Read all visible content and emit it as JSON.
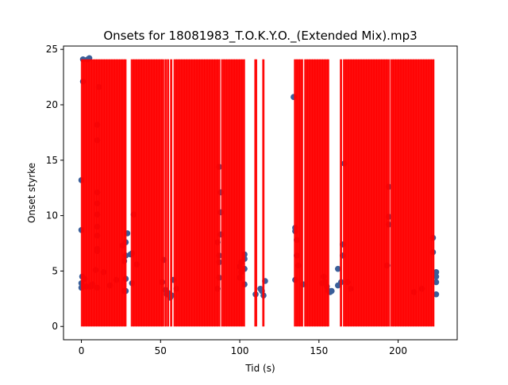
{
  "chart_data": {
    "type": "scatter",
    "title": "Onsets for 18081983_T.O.K.Y.O._(Extended Mix).mp3",
    "xlabel": "Tid (s)",
    "ylabel": "Onset styrke",
    "xlim": [
      -11.3,
      237.3
    ],
    "ylim": [
      -1.2,
      25.3
    ],
    "x_ticks": [
      0,
      50,
      100,
      150,
      200
    ],
    "y_ticks": [
      0,
      5,
      10,
      15,
      20,
      25
    ],
    "grid": false,
    "legend": "none",
    "colors": {
      "points": "#3a5f9a",
      "lines": "#ff0000"
    },
    "onset_line_top": 24.1,
    "points": [
      [
        0,
        3.5
      ],
      [
        0,
        3.9
      ],
      [
        0,
        8.7
      ],
      [
        0,
        13.2
      ],
      [
        0.5,
        4.5
      ],
      [
        1,
        22.1
      ],
      [
        1,
        24.1
      ],
      [
        2,
        4.3
      ],
      [
        3,
        3.6
      ],
      [
        4,
        24.1
      ],
      [
        5,
        24.2
      ],
      [
        6,
        3.6
      ],
      [
        7,
        3.8
      ],
      [
        10,
        18.2
      ],
      [
        10,
        16.8
      ],
      [
        10,
        12.1
      ],
      [
        10,
        11.1
      ],
      [
        10,
        10.1
      ],
      [
        10,
        9.0
      ],
      [
        10,
        8.2
      ],
      [
        10,
        7.0
      ],
      [
        10,
        6.8
      ],
      [
        10,
        3.5
      ],
      [
        11,
        21.6
      ],
      [
        9,
        5.1
      ],
      [
        14,
        4.9
      ],
      [
        18,
        3.7
      ],
      [
        22,
        4.2
      ],
      [
        26,
        7.3
      ],
      [
        27,
        5.9
      ],
      [
        27,
        3.2
      ],
      [
        28,
        3.2
      ],
      [
        28,
        4.3
      ],
      [
        28,
        6.4
      ],
      [
        28,
        7.6
      ],
      [
        29,
        8.4
      ],
      [
        31,
        6.5
      ],
      [
        32,
        3.9
      ],
      [
        33,
        10.1
      ],
      [
        32,
        6.6
      ],
      [
        35,
        5.6
      ],
      [
        51,
        4.0
      ],
      [
        52,
        6.0
      ],
      [
        53,
        3.3
      ],
      [
        54,
        2.9
      ],
      [
        55,
        3.0
      ],
      [
        56,
        2.6
      ],
      [
        57,
        2.8
      ],
      [
        58,
        4.2
      ],
      [
        60,
        3.4
      ],
      [
        86,
        3.4
      ],
      [
        86,
        7.6
      ],
      [
        87,
        4.4
      ],
      [
        87,
        5.8
      ],
      [
        87,
        6.4
      ],
      [
        88,
        8.3
      ],
      [
        88,
        10.3
      ],
      [
        88,
        12.1
      ],
      [
        87,
        14.4
      ],
      [
        100,
        4.4
      ],
      [
        100,
        5.4
      ],
      [
        101,
        5.8
      ],
      [
        101,
        4.9
      ],
      [
        103,
        6.5
      ],
      [
        103,
        6.1
      ],
      [
        103,
        5.2
      ],
      [
        103,
        3.8
      ],
      [
        110,
        2.9
      ],
      [
        113,
        3.4
      ],
      [
        114,
        3.2
      ],
      [
        115,
        2.8
      ],
      [
        116,
        4.1
      ],
      [
        134,
        20.7
      ],
      [
        135,
        4.2
      ],
      [
        135,
        8.6
      ],
      [
        135,
        8.9
      ],
      [
        136,
        7.8
      ],
      [
        136,
        6.4
      ],
      [
        137,
        5.5
      ],
      [
        140,
        3.8
      ],
      [
        152,
        3.9
      ],
      [
        153,
        4.5
      ],
      [
        154,
        4.0
      ],
      [
        155,
        3.6
      ],
      [
        156,
        3.2
      ],
      [
        157,
        3.1
      ],
      [
        158,
        3.2
      ],
      [
        162,
        3.7
      ],
      [
        162,
        5.2
      ],
      [
        164,
        4.0
      ],
      [
        165,
        6.4
      ],
      [
        165,
        7.4
      ],
      [
        166,
        14.7
      ],
      [
        168,
        4.0
      ],
      [
        170,
        3.4
      ],
      [
        193,
        5.5
      ],
      [
        194,
        9.2
      ],
      [
        194,
        9.9
      ],
      [
        194,
        12.6
      ],
      [
        210,
        3.1
      ],
      [
        215,
        3.4
      ],
      [
        222,
        6.7
      ],
      [
        222,
        8.0
      ],
      [
        224,
        2.9
      ],
      [
        224,
        4.0
      ],
      [
        224,
        4.5
      ],
      [
        224,
        4.9
      ]
    ],
    "onset_bands": [
      [
        0,
        28.5
      ],
      [
        31.5,
        52.3
      ],
      [
        52.8,
        53.4
      ],
      [
        54.3,
        55.0
      ],
      [
        56.3,
        56.9
      ],
      [
        58.5,
        87.6
      ],
      [
        88.5,
        103.3
      ],
      [
        109.5,
        111.0
      ],
      [
        114.5,
        115.6
      ],
      [
        134.5,
        140.0
      ],
      [
        141.0,
        156.5
      ],
      [
        163.5,
        164.5
      ],
      [
        165.5,
        194.5
      ],
      [
        195.3,
        222.8
      ]
    ]
  }
}
